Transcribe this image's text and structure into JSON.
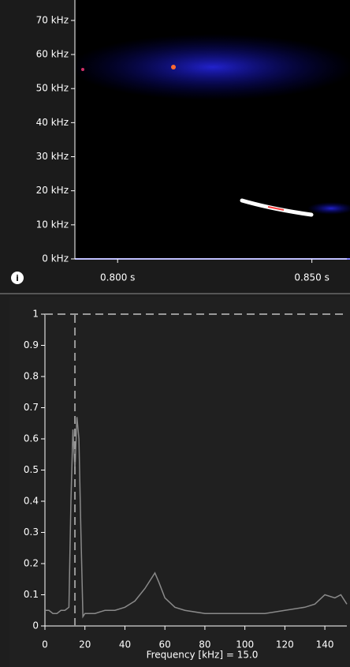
{
  "chart_data": [
    {
      "type": "spectrogram",
      "xlim": [
        0.789,
        0.859
      ],
      "xticks": [
        {
          "value": 0.8,
          "label": "0.800 s"
        },
        {
          "value": 0.85,
          "label": "0.850 s"
        }
      ],
      "ylim": [
        0,
        76
      ],
      "yticks": [
        {
          "value": 0,
          "label": "0 kHz"
        },
        {
          "value": 10,
          "label": "10 kHz"
        },
        {
          "value": 20,
          "label": "20 kHz"
        },
        {
          "value": 30,
          "label": "30 kHz"
        },
        {
          "value": 40,
          "label": "40 kHz"
        },
        {
          "value": 50,
          "label": "50 kHz"
        },
        {
          "value": 60,
          "label": "60 kHz"
        },
        {
          "value": 70,
          "label": "70 kHz"
        }
      ]
    },
    {
      "type": "line",
      "xlabel": "Frequency [kHz] = 15.0",
      "x": [
        0,
        2,
        4,
        6,
        8,
        10,
        12,
        13,
        14,
        15,
        16,
        17,
        18,
        19,
        20,
        25,
        30,
        35,
        40,
        45,
        50,
        53,
        55,
        57,
        60,
        65,
        70,
        80,
        90,
        100,
        110,
        120,
        130,
        135,
        140,
        145,
        148,
        151
      ],
      "values": [
        0.05,
        0.05,
        0.04,
        0.04,
        0.05,
        0.05,
        0.06,
        0.4,
        0.63,
        0.5,
        0.67,
        0.6,
        0.3,
        0.03,
        0.04,
        0.04,
        0.05,
        0.05,
        0.06,
        0.08,
        0.12,
        0.15,
        0.17,
        0.14,
        0.09,
        0.06,
        0.05,
        0.04,
        0.04,
        0.04,
        0.04,
        0.05,
        0.06,
        0.07,
        0.1,
        0.09,
        0.1,
        0.07
      ],
      "color": "#8a8a8a",
      "cursor": {
        "x": 15,
        "y": 1
      },
      "xlim": [
        0,
        151
      ],
      "xticks": [
        0,
        20,
        40,
        60,
        80,
        100,
        120,
        140
      ],
      "ylim": [
        0,
        1
      ],
      "yticks": [
        0,
        0.1,
        0.2,
        0.3,
        0.4,
        0.5,
        0.6,
        0.7,
        0.8,
        0.9,
        1
      ]
    }
  ]
}
